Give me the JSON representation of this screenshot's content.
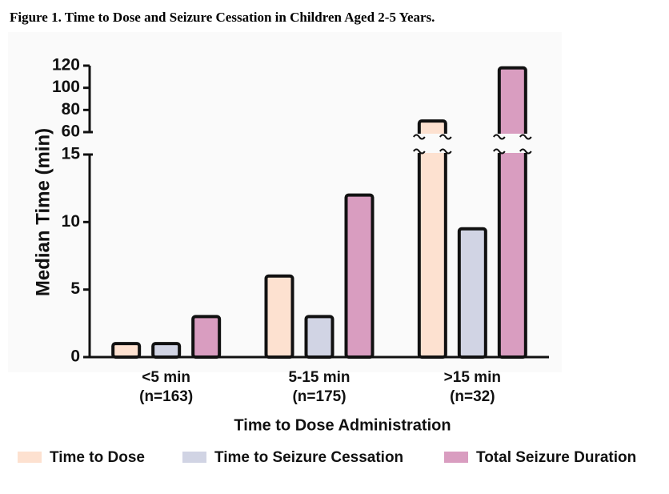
{
  "chart_data": {
    "type": "bar",
    "title": "Figure 1. Time to Dose and Seizure Cessation in Children Aged 2-5 Years.",
    "y_label": "Median Time (min)",
    "x_label": "Time to Dose Administration",
    "categories": [
      [
        "<5 min",
        "(n=163)"
      ],
      [
        "5-15 min",
        "(n=175)"
      ],
      [
        ">15 min",
        "(n=32)"
      ]
    ],
    "series": [
      {
        "name": "Time to Dose",
        "color": "#fde1d0",
        "values": [
          1,
          6,
          70
        ]
      },
      {
        "name": "Time to Seizure Cessation",
        "color": "#d1d4e4",
        "values": [
          1,
          3,
          9.5
        ]
      },
      {
        "name": "Total Seizure Duration",
        "color": "#d99dc0",
        "values": [
          3,
          12,
          118
        ]
      }
    ],
    "ylim": [
      0,
      120
    ],
    "ybreak": [
      15,
      60
    ],
    "yticks": [
      0,
      5,
      10,
      15,
      60,
      80,
      100,
      120
    ]
  }
}
